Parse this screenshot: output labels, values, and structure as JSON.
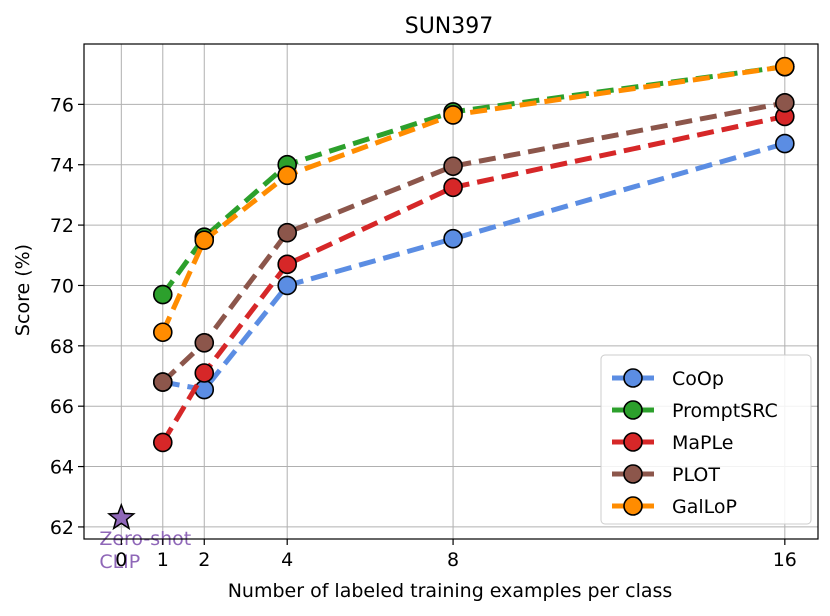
{
  "chart_data": {
    "type": "line",
    "title": "SUN397",
    "xlabel": "Number of labeled training examples per class",
    "ylabel": "Score (%)",
    "x_ticks": [
      0,
      1,
      2,
      4,
      8,
      16
    ],
    "x_tick_labels": [
      "0",
      "1",
      "2",
      "4",
      "8",
      "16"
    ],
    "y_ticks": [
      62,
      64,
      66,
      68,
      70,
      72,
      74,
      76
    ],
    "y_tick_labels": [
      "62",
      "64",
      "66",
      "68",
      "70",
      "72",
      "74",
      "76"
    ],
    "xlim": [
      -0.9,
      16.8
    ],
    "ylim": [
      61.6,
      78.0
    ],
    "grid": true,
    "legend_position": "bottom-right",
    "zero_shot": {
      "label": "Zero-shot CLIP",
      "label_lines": [
        "Zero-shot",
        "CLIP"
      ],
      "x": 0,
      "y": 62.3,
      "color": "#8f67b8"
    },
    "series": [
      {
        "name": "CoOp",
        "color": "#5b8de3",
        "x": [
          1,
          2,
          4,
          8,
          16
        ],
        "values": [
          66.8,
          66.55,
          70.0,
          71.55,
          74.7
        ]
      },
      {
        "name": "PromptSRC",
        "color": "#2ca02c",
        "x": [
          1,
          2,
          4,
          8,
          16
        ],
        "values": [
          69.7,
          71.6,
          74.0,
          75.75,
          77.25
        ]
      },
      {
        "name": "MaPLe",
        "color": "#d62728",
        "x": [
          1,
          2,
          4,
          8,
          16
        ],
        "values": [
          64.8,
          67.1,
          70.7,
          73.25,
          75.6
        ]
      },
      {
        "name": "PLOT",
        "color": "#8c564b",
        "x": [
          1,
          2,
          4,
          8,
          16
        ],
        "values": [
          66.8,
          68.1,
          71.75,
          73.95,
          76.05
        ]
      },
      {
        "name": "GalLoP",
        "color": "#ff8c00",
        "x": [
          1,
          2,
          4,
          8,
          16
        ],
        "values": [
          68.45,
          71.5,
          73.65,
          75.65,
          77.25
        ]
      }
    ]
  }
}
